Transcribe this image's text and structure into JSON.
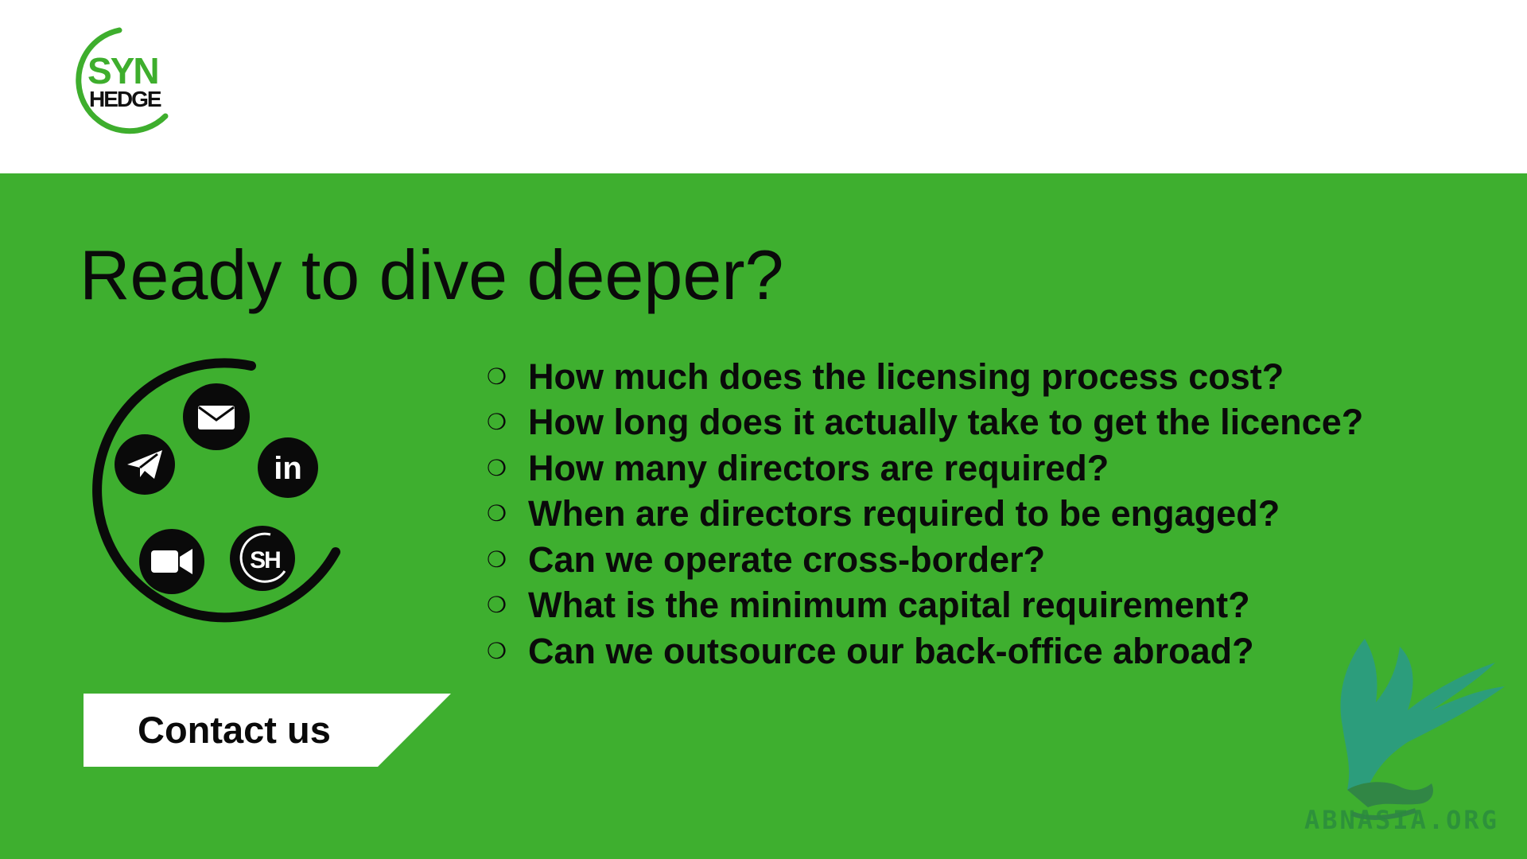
{
  "logo": {
    "top_text": "SYN",
    "bottom_text": "HEDGE",
    "accent_color": "#3eae2d"
  },
  "title": "Ready to dive deeper?",
  "contact_icons": [
    "email-icon",
    "telegram-icon",
    "linkedin-icon",
    "video-call-icon",
    "synhedge-icon"
  ],
  "linkedin_label": "in",
  "synhedge_icon_label": "SH",
  "questions": [
    "How much does the licensing process cost?",
    "How long does it actually take to get the licence?",
    "How many directors are required?",
    "When are directors required to be engaged?",
    "Can we operate cross-border?",
    "What is the minimum capital requirement?",
    "Can we outsource our back-office abroad?"
  ],
  "bullet_glyph": "❍",
  "contact_button": {
    "label": "Contact us"
  },
  "watermark": {
    "text": "ABNASIA.ORG"
  },
  "colors": {
    "background_green": "#3eaf2f",
    "header_white": "#ffffff",
    "text_dark": "#0a0a0a",
    "watermark_teal": "#2a9a8a"
  }
}
